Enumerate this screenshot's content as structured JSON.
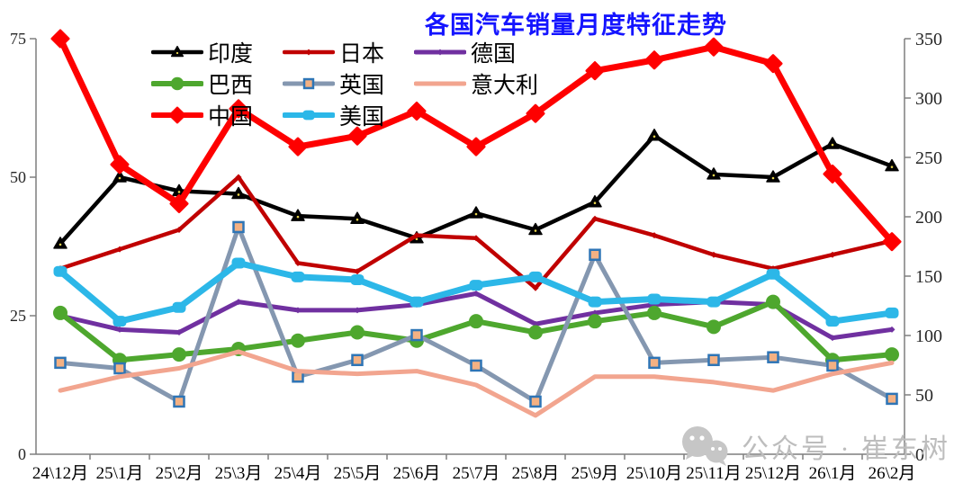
{
  "title": {
    "text": "各国汽车销量月度特征走势",
    "color": "#1414ff"
  },
  "watermark": {
    "text": "公众号 · 崔东树",
    "icon": "wechat-icon",
    "color": "#bdbdbd"
  },
  "chart_data": {
    "type": "line",
    "title": "各国汽车销量月度特征走势",
    "categories": [
      "24\\12月",
      "25\\1月",
      "25\\2月",
      "25\\3月",
      "25\\4月",
      "25\\5月",
      "25\\6月",
      "25\\7月",
      "25\\8月",
      "25\\9月",
      "25\\10月",
      "25\\11月",
      "25\\12月",
      "26\\1月",
      "26\\2月"
    ],
    "axes": {
      "left": {
        "min": 0,
        "max": 75,
        "ticks": [
          0,
          25,
          50,
          75
        ]
      },
      "right": {
        "min": 0,
        "max": 350,
        "ticks": [
          0,
          50,
          100,
          150,
          200,
          250,
          300,
          350
        ]
      }
    },
    "grid": false,
    "legend_position": "top",
    "legend_order": [
      "india",
      "japan",
      "germany",
      "brazil",
      "uk",
      "italy",
      "china",
      "usa"
    ],
    "z_order": [
      "india",
      "japan",
      "germany",
      "brazil",
      "uk",
      "italy",
      "china",
      "usa"
    ],
    "series": [
      {
        "en": "india",
        "name": "印度",
        "axis": "left",
        "color": "#000000",
        "marker": "triangle",
        "width": 4.5,
        "values": [
          38,
          50,
          47.5,
          47,
          43,
          42.5,
          39,
          43.5,
          40.5,
          45.5,
          57.5,
          50.5,
          50,
          56,
          52
        ]
      },
      {
        "en": "japan",
        "name": "日本",
        "axis": "left",
        "color": "#c00000",
        "marker": "dot-small",
        "width": 4.5,
        "values": [
          33.5,
          37,
          40.5,
          50,
          34.5,
          33,
          39.5,
          39,
          30,
          42.5,
          39.5,
          36,
          33.5,
          36,
          38.5
        ]
      },
      {
        "en": "germany",
        "name": "德国",
        "axis": "left",
        "color": "#7030a0",
        "marker": "dot-small",
        "width": 5,
        "values": [
          25,
          22.5,
          22,
          27.5,
          26,
          26,
          27,
          29,
          23.5,
          25.5,
          27,
          27.5,
          27,
          21,
          22.5
        ]
      },
      {
        "en": "brazil",
        "name": "巴西",
        "axis": "left",
        "color": "#4ea72e",
        "marker": "circle",
        "width": 6,
        "values": [
          25.5,
          17,
          18,
          19,
          20.5,
          22,
          20.5,
          24,
          22,
          24,
          25.5,
          23,
          27.5,
          17,
          18
        ]
      },
      {
        "en": "uk",
        "name": "英国",
        "axis": "left",
        "color": "#8497b0",
        "marker": "square",
        "marker_fill": "#f4b183",
        "marker_stroke": "#2e75b6",
        "width": 5,
        "values": [
          16.5,
          15.5,
          9.5,
          41,
          14,
          17,
          21.5,
          16,
          9.5,
          36,
          16.5,
          17,
          17.5,
          16,
          10
        ]
      },
      {
        "en": "italy",
        "name": "意大利",
        "axis": "left",
        "color": "#f2a58f",
        "marker": "none",
        "width": 5,
        "values": [
          11.5,
          14,
          15.5,
          18.5,
          15,
          14.5,
          15,
          12.5,
          7,
          14,
          14,
          13,
          11.5,
          14.5,
          16.5
        ]
      },
      {
        "en": "china",
        "name": "中国",
        "axis": "right",
        "color": "#fe0000",
        "marker": "diamond",
        "width": 7,
        "values": [
          350,
          244,
          211,
          291,
          259,
          268,
          289,
          259,
          287,
          323,
          332,
          343,
          329,
          236,
          179
        ]
      },
      {
        "en": "usa",
        "name": "美国",
        "axis": "left",
        "color": "#2cb7e8",
        "marker": "rounded",
        "width": 7,
        "values": [
          33,
          24,
          26.5,
          34.5,
          32,
          31.5,
          27.5,
          30.5,
          32,
          27.5,
          28,
          27.5,
          32.5,
          24,
          25.5
        ]
      }
    ]
  }
}
